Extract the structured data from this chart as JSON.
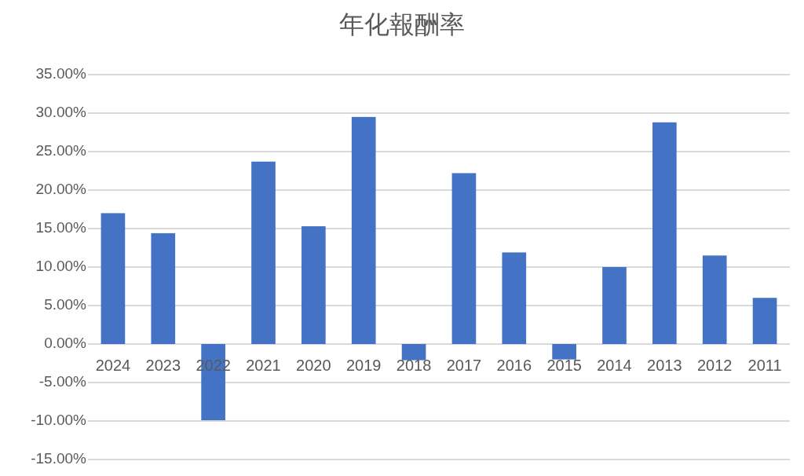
{
  "chart_data": {
    "type": "bar",
    "title": "年化報酬率",
    "categories": [
      "2024",
      "2023",
      "2022",
      "2021",
      "2020",
      "2019",
      "2018",
      "2017",
      "2016",
      "2015",
      "2014",
      "2013",
      "2012",
      "2011"
    ],
    "values": [
      17.0,
      14.4,
      -9.9,
      23.7,
      15.3,
      29.5,
      -2.1,
      22.2,
      11.9,
      -2.0,
      10.0,
      28.8,
      11.5,
      6.0
    ],
    "color": "#4472c4",
    "ylim": [
      -15,
      35
    ],
    "yticks": [
      {
        "value": -15,
        "label": "-15.00%"
      },
      {
        "value": -10,
        "label": "-10.00%"
      },
      {
        "value": -5,
        "label": "-5.00%"
      },
      {
        "value": 0,
        "label": "0.00%"
      },
      {
        "value": 5,
        "label": "5.00%"
      },
      {
        "value": 10,
        "label": "10.00%"
      },
      {
        "value": 15,
        "label": "15.00%"
      },
      {
        "value": 20,
        "label": "20.00%"
      },
      {
        "value": 25,
        "label": "25.00%"
      },
      {
        "value": 30,
        "label": "30.00%"
      },
      {
        "value": 35,
        "label": "35.00%"
      }
    ],
    "grid": "y"
  }
}
